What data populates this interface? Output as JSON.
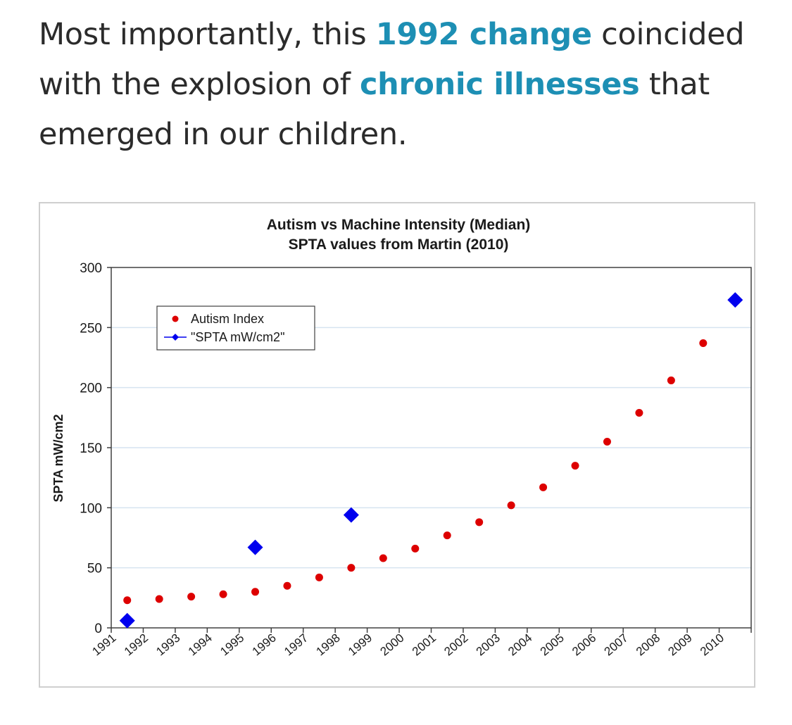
{
  "headline": {
    "part1": "Most importantly, this ",
    "link1": "1992 change",
    "part2": " coincided with the explosion of ",
    "link2": "chronic illnesses",
    "part3": " that emerged in our children."
  },
  "colors": {
    "headline_text": "#2b2b2b",
    "headline_link": "#1d8fb4",
    "autism_series": "#dd0000",
    "spta_series": "#0000ee",
    "grid": "#d6e4f0"
  },
  "chart_data": {
    "type": "scatter",
    "title": "Autism vs Machine Intensity (Median)",
    "subtitle": "SPTA values from Martin (2010)",
    "xlabel": "",
    "ylabel": "SPTA mW/cm2",
    "ylim": [
      0,
      300
    ],
    "yticks": [
      0,
      50,
      100,
      150,
      200,
      250,
      300
    ],
    "categories": [
      "1991",
      "1992",
      "1993",
      "1994",
      "1995",
      "1996",
      "1997",
      "1998",
      "1999",
      "2000",
      "2001",
      "2002",
      "2003",
      "2004",
      "2005",
      "2006",
      "2007",
      "2008",
      "2009",
      "2010"
    ],
    "grid": true,
    "legend": "top-left",
    "series": [
      {
        "name": "Autism Index",
        "marker": "circle",
        "color": "#dd0000",
        "points": [
          {
            "x": "1991",
            "y": 23
          },
          {
            "x": "1992",
            "y": 24
          },
          {
            "x": "1993",
            "y": 26
          },
          {
            "x": "1994",
            "y": 28
          },
          {
            "x": "1995",
            "y": 30
          },
          {
            "x": "1996",
            "y": 35
          },
          {
            "x": "1997",
            "y": 42
          },
          {
            "x": "1998",
            "y": 50
          },
          {
            "x": "1999",
            "y": 58
          },
          {
            "x": "2000",
            "y": 66
          },
          {
            "x": "2001",
            "y": 77
          },
          {
            "x": "2002",
            "y": 88
          },
          {
            "x": "2003",
            "y": 102
          },
          {
            "x": "2004",
            "y": 117
          },
          {
            "x": "2005",
            "y": 135
          },
          {
            "x": "2006",
            "y": 155
          },
          {
            "x": "2007",
            "y": 179
          },
          {
            "x": "2008",
            "y": 206
          },
          {
            "x": "2009",
            "y": 237
          }
        ]
      },
      {
        "name": "\"SPTA mW/cm2\"",
        "marker": "diamond",
        "color": "#0000ee",
        "points": [
          {
            "x": "1991",
            "y": 6
          },
          {
            "x": "1995",
            "y": 67
          },
          {
            "x": "1998",
            "y": 94
          },
          {
            "x": "2010",
            "y": 273
          }
        ]
      }
    ]
  }
}
